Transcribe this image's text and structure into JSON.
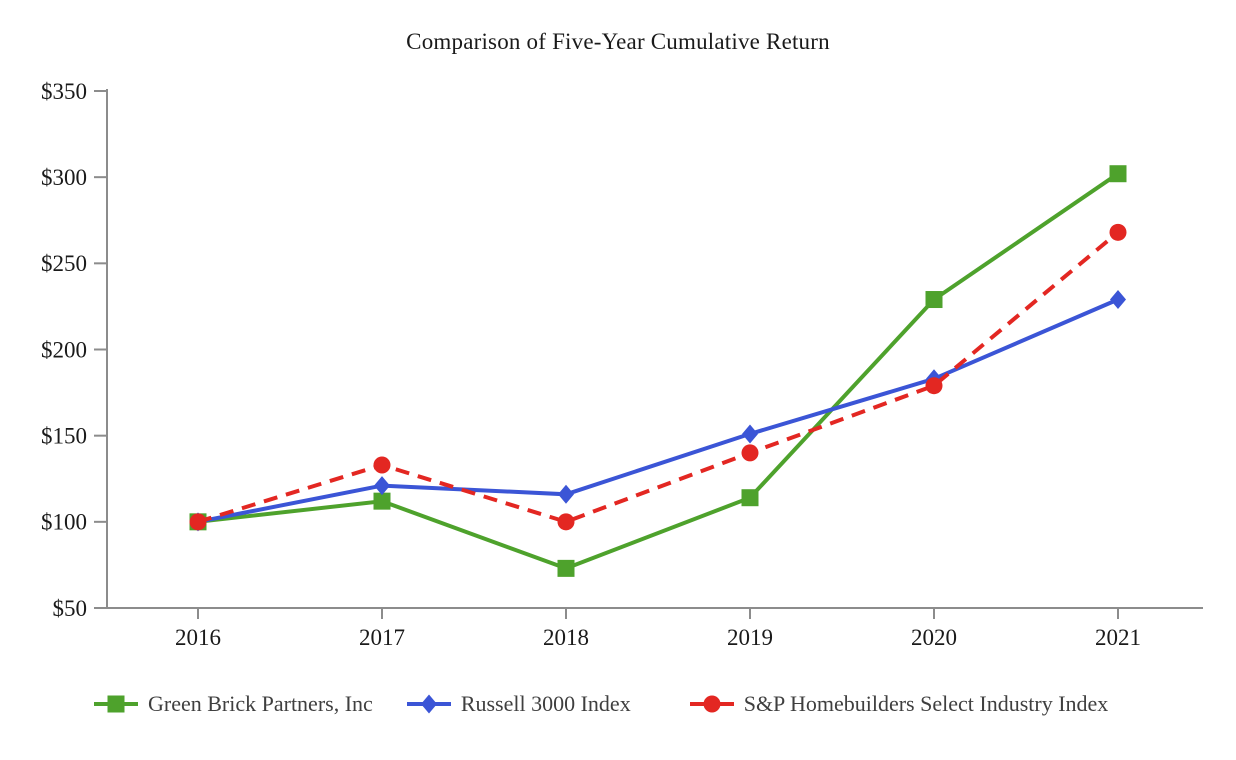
{
  "chart_data": {
    "type": "line",
    "title": "Comparison of Five-Year Cumulative Return",
    "xlabel": "",
    "ylabel": "",
    "x": [
      "2016",
      "2017",
      "2018",
      "2019",
      "2020",
      "2021"
    ],
    "series": [
      {
        "name": "Green Brick Partners, Inc",
        "color": "#4EA22C",
        "marker": "square",
        "line_style": "solid",
        "values": [
          100,
          112,
          73,
          114,
          229,
          302
        ]
      },
      {
        "name": "Russell 3000 Index",
        "color": "#3B55D6",
        "marker": "diamond",
        "line_style": "solid",
        "values": [
          100,
          121,
          116,
          151,
          183,
          229
        ]
      },
      {
        "name": "S&P Homebuilders Select Industry Index",
        "color": "#E32722",
        "marker": "circle",
        "line_style": "dashed",
        "values": [
          100,
          133,
          100,
          140,
          179,
          268
        ]
      }
    ],
    "y_ticks": [
      {
        "label": "$50",
        "value": 50
      },
      {
        "label": "$100",
        "value": 100
      },
      {
        "label": "$150",
        "value": 150
      },
      {
        "label": "$200",
        "value": 200
      },
      {
        "label": "$250",
        "value": 250
      },
      {
        "label": "$300",
        "value": 300
      },
      {
        "label": "$350",
        "value": 350
      }
    ],
    "ylim": [
      50,
      350
    ],
    "grid": false,
    "legend_position": "bottom",
    "axis_color": "#8C8C8C",
    "text_color": "#1A1A1A",
    "legend_text_color": "#3F3F3F"
  }
}
